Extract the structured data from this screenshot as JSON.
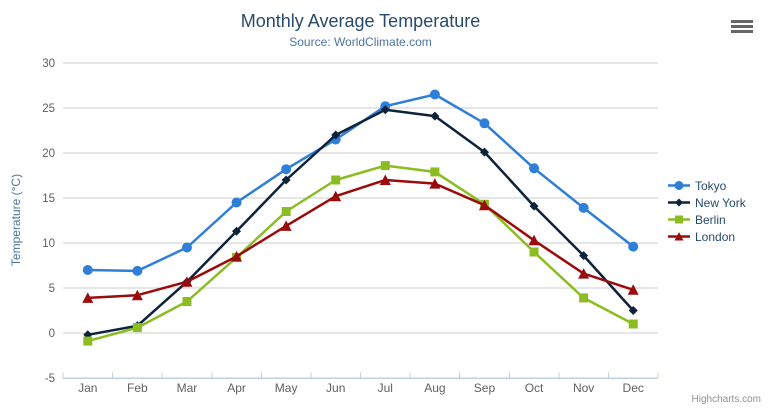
{
  "chart": {
    "title": "Monthly Average Temperature",
    "subtitle": "Source: WorldClimate.com",
    "credits": "Highcharts.com"
  },
  "chart_data": {
    "type": "line",
    "title": "Monthly Average Temperature",
    "subtitle": "Source: WorldClimate.com",
    "categories": [
      "Jan",
      "Feb",
      "Mar",
      "Apr",
      "May",
      "Jun",
      "Jul",
      "Aug",
      "Sep",
      "Oct",
      "Nov",
      "Dec"
    ],
    "series": [
      {
        "name": "Tokyo",
        "color": "#2f7ed8",
        "marker": "circle",
        "values": [
          7.0,
          6.9,
          9.5,
          14.5,
          18.2,
          21.5,
          25.2,
          26.5,
          23.3,
          18.3,
          13.9,
          9.6
        ]
      },
      {
        "name": "New York",
        "color": "#0d233a",
        "marker": "diamond",
        "values": [
          -0.2,
          0.8,
          5.7,
          11.3,
          17.0,
          22.0,
          24.8,
          24.1,
          20.1,
          14.1,
          8.6,
          2.5
        ]
      },
      {
        "name": "Berlin",
        "color": "#8bbc21",
        "marker": "square",
        "values": [
          -0.9,
          0.6,
          3.5,
          8.4,
          13.5,
          17.0,
          18.6,
          17.9,
          14.3,
          9.0,
          3.9,
          1.0
        ]
      },
      {
        "name": "London",
        "color": "#9a0b0b",
        "marker": "triangle",
        "values": [
          3.9,
          4.2,
          5.7,
          8.5,
          11.9,
          15.2,
          17.0,
          16.6,
          14.2,
          10.3,
          6.6,
          4.8
        ]
      }
    ],
    "xlabel": "",
    "ylabel": "Temperature (°C)",
    "ylim": [
      -5,
      30
    ],
    "yticks": [
      -5,
      0,
      5,
      10,
      15,
      20,
      25,
      30
    ],
    "grid": "horizontal",
    "legend_position": "right",
    "colors": {
      "grid_line": "#cccccc",
      "axis_line": "#c0d0e0",
      "axis_label": "#606060",
      "axis_title": "#4d759e",
      "title": "#274b6d",
      "subtitle": "#4d759e",
      "legend_text": "#274b6d",
      "credits_text": "#909090",
      "menu_icon": "#666666"
    }
  }
}
